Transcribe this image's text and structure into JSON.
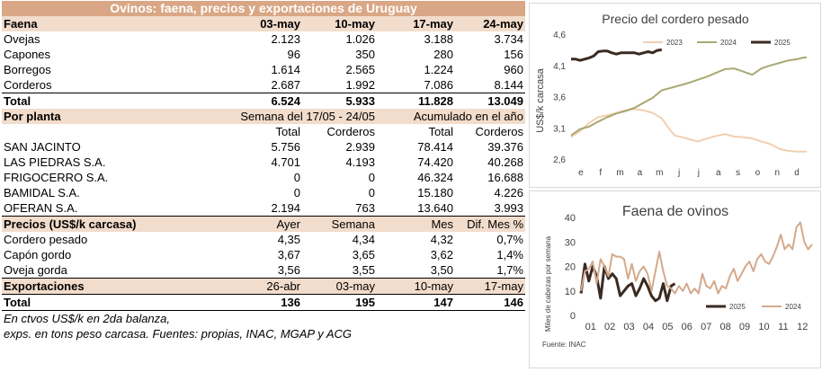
{
  "table": {
    "title": "Ovinos: faena, precios y exportaciones de Uruguay",
    "faena": {
      "header": [
        "Faena",
        "03-may",
        "10-may",
        "17-may",
        "24-may"
      ],
      "rows": [
        [
          "Ovejas",
          "2.123",
          "1.026",
          "3.188",
          "3.734"
        ],
        [
          "Capones",
          "96",
          "350",
          "280",
          "156"
        ],
        [
          "Borregos",
          "1.614",
          "2.565",
          "1.224",
          "960"
        ],
        [
          "Corderos",
          "2.687",
          "1.992",
          "7.086",
          "8.144"
        ]
      ],
      "total": [
        "Total",
        "6.524",
        "5.933",
        "11.828",
        "13.049"
      ]
    },
    "planta": {
      "header": [
        "Por planta",
        "Semana del  17/05 - 24/05",
        "Acumulado en el año"
      ],
      "subheader": [
        "",
        "Total",
        "Corderos",
        "Total",
        "Corderos"
      ],
      "rows": [
        [
          "SAN JACINTO",
          "5.756",
          "2.939",
          "78.414",
          "39.376"
        ],
        [
          "LAS PIEDRAS S.A.",
          "4.701",
          "4.193",
          "74.420",
          "40.268"
        ],
        [
          "FRIGOCERRO S.A.",
          "0",
          "0",
          "46.324",
          "16.688"
        ],
        [
          "BAMIDAL S.A.",
          "0",
          "0",
          "15.180",
          "4.226"
        ],
        [
          "OFERAN S.A.",
          "2.194",
          "763",
          "13.640",
          "3.993"
        ]
      ]
    },
    "precios": {
      "header": [
        "Precios (US$/k carcasa)",
        "Ayer",
        "Semana",
        "Mes",
        "Dif. Mes %"
      ],
      "rows": [
        [
          "Cordero pesado",
          "4,35",
          "4,34",
          "4,32",
          "0,7%"
        ],
        [
          "Capón gordo",
          "3,67",
          "3,65",
          "3,62",
          "1,4%"
        ],
        [
          "Oveja gorda",
          "3,56",
          "3,55",
          "3,50",
          "1,7%"
        ]
      ]
    },
    "exportaciones": {
      "header": [
        "Exportaciones",
        "26-abr",
        "03-may",
        "10-may",
        "17-may"
      ],
      "total": [
        "Total",
        "136",
        "195",
        "147",
        "146"
      ]
    },
    "notes": [
      "En ctvos US$/k  en 2da balanza,",
      "exps. en tons peso carcasa. Fuentes: propias, INAC, MGAP y ACG"
    ]
  },
  "chart_data": [
    {
      "type": "line",
      "title": "Precio del cordero pesado",
      "ylabel": "US$/k carcasa",
      "xlabel": "",
      "x_ticks": [
        "e",
        "f",
        "m",
        "a",
        "m",
        "j",
        "j",
        "a",
        "s",
        "o",
        "n",
        "d"
      ],
      "y_ticks": [
        "2,6",
        "3,1",
        "3,6",
        "4,1",
        "4,6"
      ],
      "ylim": [
        2.6,
        4.6
      ],
      "xlim": [
        0,
        52
      ],
      "grid": false,
      "legend": "top",
      "series": [
        {
          "name": "2023",
          "color": "#f2cfb1",
          "x": [
            0,
            2,
            4,
            6,
            8,
            10,
            12,
            14,
            16,
            18,
            20,
            22,
            23,
            24,
            26,
            28,
            30,
            32,
            34,
            36,
            38,
            40,
            42,
            44,
            46,
            48,
            50,
            52
          ],
          "y": [
            2.95,
            3.05,
            3.18,
            3.27,
            3.3,
            3.34,
            3.38,
            3.4,
            3.38,
            3.34,
            3.25,
            3.05,
            2.97,
            2.96,
            2.92,
            2.88,
            2.93,
            2.97,
            3.0,
            2.96,
            2.95,
            2.93,
            2.88,
            2.84,
            2.76,
            2.73,
            2.72,
            2.72
          ]
        },
        {
          "name": "2024",
          "color": "#a9a872",
          "x": [
            0,
            2,
            4,
            6,
            8,
            10,
            12,
            14,
            16,
            18,
            20,
            22,
            24,
            26,
            28,
            30,
            32,
            34,
            36,
            38,
            40,
            42,
            44,
            46,
            48,
            50,
            51,
            52
          ],
          "y": [
            2.98,
            3.08,
            3.12,
            3.2,
            3.27,
            3.33,
            3.37,
            3.42,
            3.5,
            3.58,
            3.7,
            3.74,
            3.78,
            3.82,
            3.87,
            3.92,
            3.98,
            4.04,
            4.05,
            4.0,
            3.95,
            4.05,
            4.1,
            4.14,
            4.18,
            4.2,
            4.22,
            4.23
          ]
        },
        {
          "name": "2025",
          "color": "#3b2a22",
          "x": [
            0,
            1,
            2,
            3,
            4,
            5,
            6,
            7,
            8,
            9,
            10,
            11,
            12,
            13,
            14,
            15,
            16,
            17,
            18,
            19,
            20
          ],
          "y": [
            4.2,
            4.2,
            4.18,
            4.2,
            4.22,
            4.25,
            4.32,
            4.33,
            4.33,
            4.3,
            4.28,
            4.3,
            4.3,
            4.3,
            4.3,
            4.28,
            4.3,
            4.32,
            4.3,
            4.34,
            4.35
          ]
        }
      ]
    },
    {
      "type": "line",
      "title": "Faena de ovinos",
      "ylabel": "Miles de cabezas por semana",
      "xlabel": "",
      "source": "Fuente: INAC",
      "x_ticks": [
        "01",
        "02",
        "03",
        "04",
        "05",
        "06",
        "07",
        "08",
        "09",
        "10",
        "11",
        "12"
      ],
      "y_ticks": [
        "0",
        "10",
        "20",
        "30",
        "40"
      ],
      "ylim": [
        0,
        40
      ],
      "xlim": [
        1,
        12.8
      ],
      "grid": false,
      "legend": "bottom-right",
      "series": [
        {
          "name": "2025",
          "color": "#3b2a22",
          "x": [
            1.0,
            1.2,
            1.4,
            1.6,
            1.8,
            2.0,
            2.2,
            2.4,
            2.6,
            2.8,
            3.0,
            3.2,
            3.4,
            3.6,
            3.8,
            4.0,
            4.2,
            4.4,
            4.6,
            4.8,
            5.0,
            5.2,
            5.4,
            5.6,
            5.8
          ],
          "y": [
            9,
            21,
            14,
            20,
            16,
            7,
            20,
            15,
            17,
            15,
            8,
            10,
            12,
            13,
            8,
            11,
            15,
            12,
            8,
            6,
            7,
            13,
            6,
            12,
            13
          ]
        },
        {
          "name": "2024",
          "color": "#d4a98b",
          "x": [
            1.0,
            1.2,
            1.4,
            1.6,
            1.8,
            2.0,
            2.2,
            2.4,
            2.6,
            2.8,
            3.0,
            3.2,
            3.4,
            3.6,
            3.8,
            4.0,
            4.2,
            4.4,
            4.6,
            4.8,
            5.0,
            5.2,
            5.4,
            5.6,
            5.8,
            6.0,
            6.2,
            6.4,
            6.6,
            6.8,
            7.0,
            7.2,
            7.4,
            7.6,
            7.8,
            8.0,
            8.2,
            8.4,
            8.6,
            8.8,
            9.0,
            9.2,
            9.4,
            9.6,
            9.8,
            10.0,
            10.2,
            10.4,
            10.6,
            10.8,
            11.0,
            11.2,
            11.4,
            11.6,
            11.8,
            12.0,
            12.2,
            12.4,
            12.6,
            12.8
          ],
          "y": [
            10,
            18,
            19,
            22,
            13,
            23,
            20,
            16,
            25,
            24,
            24,
            23,
            15,
            21,
            14,
            18,
            20,
            17,
            10,
            18,
            26,
            18,
            12,
            11,
            9,
            12,
            10,
            13,
            9,
            11,
            9,
            17,
            12,
            11,
            14,
            9,
            12,
            11,
            16,
            19,
            14,
            17,
            20,
            22,
            18,
            23,
            25,
            22,
            21,
            24,
            28,
            33,
            27,
            29,
            27,
            36,
            38,
            30,
            27,
            29
          ]
        }
      ]
    }
  ]
}
